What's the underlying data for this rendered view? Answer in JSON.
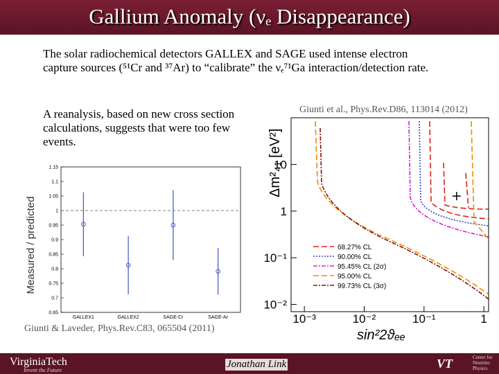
{
  "title": "Gallium Anomaly (νₑ Disappearance)",
  "paragraphs": [
    "The solar radiochemical detectors GALLEX and SAGE used intense electron capture sources (⁵¹Cr and ³⁷Ar) to “calibrate” the νₑ⁷¹Ga interaction/detection rate.",
    "A reanalysis, based on new cross section calculations, suggests that were too few events."
  ],
  "citations": [
    "Giunti et al., Phys.Rev.D86, 113014 (2012)",
    "Giunti & Laveder, Phys.Rev.C83, 065504 (2011)"
  ],
  "footer": {
    "logo": "VirginiaTech",
    "tagline": "Invent the Future",
    "author": "Jonathan Link",
    "center": "Center for Neutrino Physics"
  },
  "chart_data": [
    {
      "type": "errorbar",
      "ylabel": "Measured / predicted",
      "categories": [
        "GALLEX1",
        "GALLEX2",
        "SAGE-Cr",
        "SAGE-Ar"
      ],
      "values": [
        0.953,
        0.812,
        0.95,
        0.791
      ],
      "errors": [
        0.11,
        0.1,
        0.12,
        0.08
      ],
      "color": "#4a5fc8",
      "reference": 1,
      "ylim": [
        0.65,
        1.15
      ],
      "yticks": [
        0.65,
        0.7,
        0.75,
        0.8,
        0.85,
        0.9,
        0.95,
        1,
        1.05,
        1.1,
        1.15
      ]
    },
    {
      "type": "contour",
      "xlabel": "sin²2ϑₑₑ",
      "ylabel": "Δm²₄₁ [eV²]",
      "log_x": true,
      "log_y": true,
      "xlim": [
        0.0006,
        1.2
      ],
      "ylim": [
        0.007,
        100
      ],
      "xticks": [
        {
          "value": 0.001,
          "label": "10⁻³"
        },
        {
          "value": 0.01,
          "label": "10⁻²"
        },
        {
          "value": 0.1,
          "label": "10⁻¹"
        },
        1
      ],
      "yticks": [
        {
          "value": 0.01,
          "label": "10⁻²"
        },
        {
          "value": 0.1,
          "label": "10⁻¹"
        },
        1,
        10
      ],
      "best_fit": {
        "x": 0.35,
        "y": 2.1
      },
      "series": [
        {
          "name": "68.27% CL",
          "color": "#e0201a"
        },
        {
          "name": "90.00% CL",
          "color": "#3a3ad0"
        },
        {
          "name": "95.45% CL (2σ)",
          "color": "#d020d0"
        },
        {
          "name": "95.00% CL",
          "color": "#f08a00"
        },
        {
          "name": "99.73% CL (3σ)",
          "color": "#801010"
        }
      ]
    }
  ]
}
